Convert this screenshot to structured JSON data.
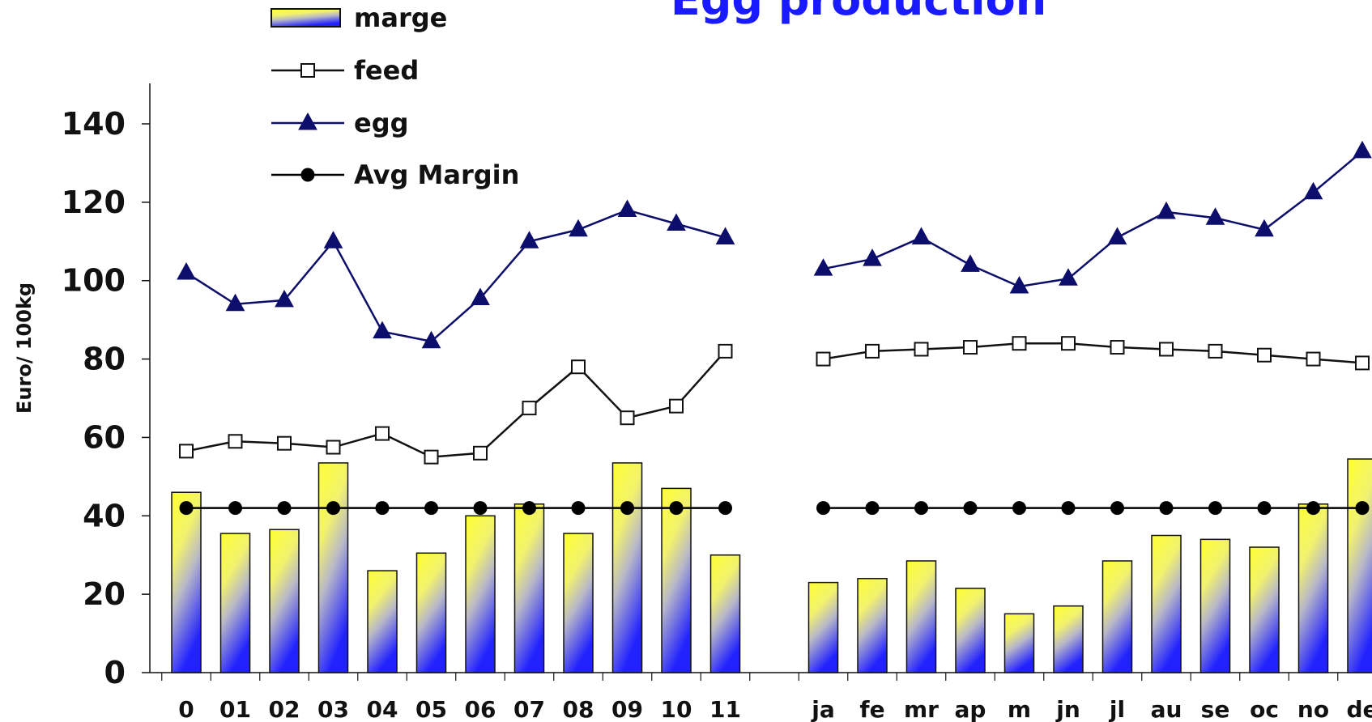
{
  "chart_data": {
    "type": "bar",
    "title": "Egg production",
    "ylabel": "Euro/ 100kg",
    "ylim": [
      0,
      150
    ],
    "yticks": [
      0,
      20,
      40,
      60,
      80,
      100,
      120,
      140
    ],
    "groups": [
      {
        "categories": [
          "0",
          "01",
          "02",
          "03",
          "04",
          "05",
          "06",
          "07",
          "08",
          "09",
          "10",
          "11"
        ]
      },
      {
        "categories": [
          "ja",
          "fe",
          "mr",
          "ap",
          "m",
          "jn",
          "jl",
          "au",
          "se",
          "oc",
          "no",
          "de"
        ]
      }
    ],
    "series": [
      {
        "name": "marge",
        "kind": "bar",
        "values": [
          [
            46,
            35.5,
            36.5,
            53.5,
            26,
            30.5,
            40,
            43,
            35.5,
            53.5,
            47,
            30
          ],
          [
            23,
            24,
            28.5,
            21.5,
            15,
            17,
            28.5,
            35,
            34,
            32,
            43,
            54.5
          ]
        ]
      },
      {
        "name": "feed",
        "kind": "line",
        "marker": "square",
        "values": [
          [
            56.5,
            59,
            58.5,
            57.5,
            61,
            55,
            56,
            67.5,
            78,
            65,
            68,
            82
          ],
          [
            80,
            82,
            82.5,
            83,
            84,
            84,
            83,
            82.5,
            82,
            81,
            80,
            79
          ]
        ]
      },
      {
        "name": "egg",
        "kind": "line",
        "marker": "triangle",
        "values": [
          [
            102,
            94,
            95,
            110,
            87,
            84.5,
            95.5,
            110,
            113,
            118,
            114.5,
            111
          ],
          [
            103,
            105.5,
            111,
            104,
            98.5,
            100.5,
            111,
            117.5,
            116,
            113,
            122.5,
            133
          ]
        ]
      },
      {
        "name": "Avg Margin",
        "kind": "line",
        "marker": "circle",
        "values": [
          [
            42,
            42,
            42,
            42,
            42,
            42,
            42,
            42,
            42,
            42,
            42,
            42
          ],
          [
            42,
            42,
            42,
            42,
            42,
            42,
            42,
            42,
            42,
            42,
            42,
            42
          ]
        ]
      }
    ],
    "colors": {
      "bar_top": "#ffff33",
      "bar_bottom": "#2222ff",
      "feed": "#111111",
      "egg": "#0d0d6b",
      "avg": "#000000",
      "title": "#1a1aff"
    },
    "legend": "top-left",
    "grid": false
  }
}
